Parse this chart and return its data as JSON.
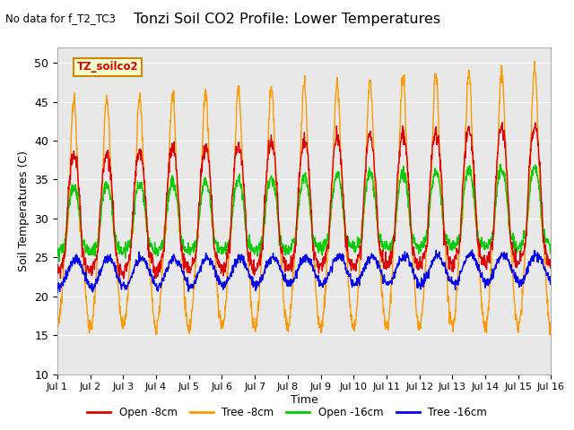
{
  "title": "Tonzi Soil CO2 Profile: Lower Temperatures",
  "subtitle": "No data for f_T2_TC3",
  "ylabel": "Soil Temperatures (C)",
  "xlabel": "Time",
  "ylim": [
    10,
    52
  ],
  "yticks": [
    10,
    15,
    20,
    25,
    30,
    35,
    40,
    45,
    50
  ],
  "legend_label": "TZ_soilco2",
  "series_labels": [
    "Open -8cm",
    "Tree -8cm",
    "Open -16cm",
    "Tree -16cm"
  ],
  "series_colors": [
    "#dd0000",
    "#ff9900",
    "#00cc00",
    "#0000ee"
  ],
  "background_color": "#e8e8e8",
  "n_days": 15,
  "pts_per_day": 96
}
